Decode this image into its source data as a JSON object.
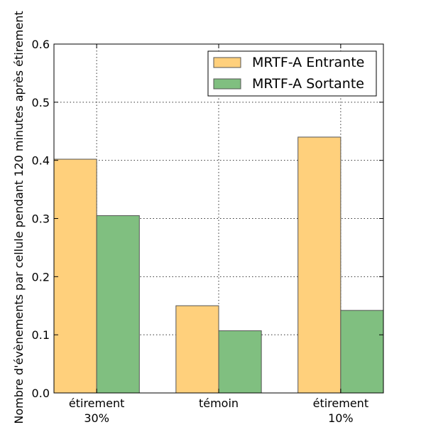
{
  "chart_data": {
    "type": "bar",
    "categories": [
      [
        "étirement",
        "30%"
      ],
      [
        "témoin"
      ],
      [
        "étirement",
        "10%"
      ]
    ],
    "series": [
      {
        "name": "MRTF-A Entrante",
        "color": "#ffd07c",
        "values": [
          0.402,
          0.15,
          0.44
        ]
      },
      {
        "name": "MRTF-A Sortante",
        "color": "#80bf80",
        "values": [
          0.305,
          0.107,
          0.142
        ]
      }
    ],
    "ylabel": "Nombre d'évènements par cellule pendant 120 minutes après étirement",
    "xlabel": "",
    "ylim": [
      0,
      0.6
    ],
    "yticks": [
      "0.0",
      "0.1",
      "0.2",
      "0.3",
      "0.4",
      "0.5",
      "0.6"
    ],
    "grid": true,
    "legend_position": "top-right"
  }
}
